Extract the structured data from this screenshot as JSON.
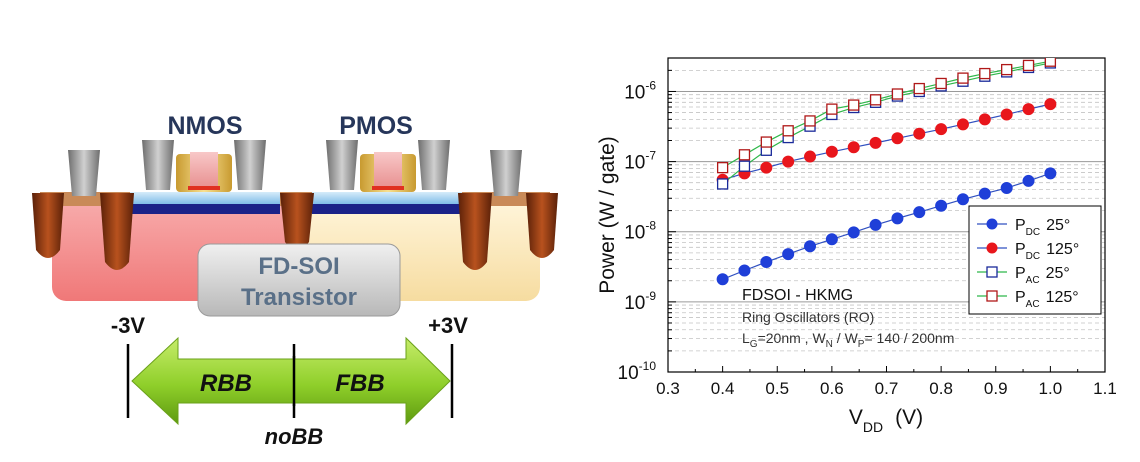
{
  "diagram": {
    "nmos_label": "NMOS",
    "pmos_label": "PMOS",
    "transistor_line1": "FD-SOI",
    "transistor_line2": "Transistor",
    "left_voltage": "-3V",
    "right_voltage": "+3V",
    "rbb_label": "RBB",
    "fbb_label": "FBB",
    "nobb_label": "noBB",
    "colors": {
      "arrow_green": "#8fcf2a",
      "pwell": "#f08c8c",
      "nwell": "#fbe6b0",
      "sti": "#8b3a17",
      "box_oxide": "#1a2288",
      "silicon": "#a8d4f0"
    }
  },
  "chart_data": {
    "type": "scatter",
    "xlabel_main": "V",
    "xlabel_sub": "DD",
    "xlabel_unit": "(V)",
    "ylabel": "Power (W / gate)",
    "xlim": [
      0.3,
      1.1
    ],
    "ylim": [
      1e-10,
      3e-06
    ],
    "yscale": "log",
    "xticks": [
      "0.3",
      "0.4",
      "0.5",
      "0.6",
      "0.7",
      "0.8",
      "0.9",
      "1.0",
      "1.1"
    ],
    "yticks": [
      {
        "base": "10",
        "exp": "-10"
      },
      {
        "base": "10",
        "exp": "-9"
      },
      {
        "base": "10",
        "exp": "-8"
      },
      {
        "base": "10",
        "exp": "-7"
      },
      {
        "base": "10",
        "exp": "-6"
      }
    ],
    "grid": true,
    "legend_position": "bottom-right",
    "annotation_title": "FDSOI - HKMG",
    "annotation_line2": "Ring Oscillators (RO)",
    "annotation_line3_parts": [
      "L",
      "G",
      "=20nm , W",
      "N",
      " / W",
      "P",
      "= 140 / 200nm"
    ],
    "series": [
      {
        "name_main": "P",
        "name_sub": "DC",
        "name_temp": "25°",
        "marker": "filled",
        "color": "#1f3fd8",
        "line": "#3050c0",
        "x": [
          0.4,
          0.44,
          0.48,
          0.52,
          0.56,
          0.6,
          0.64,
          0.68,
          0.72,
          0.76,
          0.8,
          0.84,
          0.88,
          0.92,
          0.96,
          1.0
        ],
        "y": [
          2.1e-09,
          2.8e-09,
          3.7e-09,
          4.8e-09,
          6.2e-09,
          7.8e-09,
          9.8e-09,
          1.25e-08,
          1.55e-08,
          1.9e-08,
          2.35e-08,
          2.9e-08,
          3.5e-08,
          4.2e-08,
          5.3e-08,
          6.8e-08
        ]
      },
      {
        "name_main": "P",
        "name_sub": "DC",
        "name_temp": "125°",
        "marker": "filled",
        "color": "#e8161c",
        "line": "#3050c0",
        "x": [
          0.4,
          0.44,
          0.48,
          0.52,
          0.56,
          0.6,
          0.64,
          0.68,
          0.72,
          0.76,
          0.8,
          0.84,
          0.88,
          0.92,
          0.96,
          1.0
        ],
        "y": [
          5.5e-08,
          6.8e-08,
          8.2e-08,
          1e-07,
          1.18e-07,
          1.38e-07,
          1.6e-07,
          1.85e-07,
          2.15e-07,
          2.5e-07,
          2.9e-07,
          3.4e-07,
          4e-07,
          4.7e-07,
          5.6e-07,
          6.6e-07
        ]
      },
      {
        "name_main": "P",
        "name_sub": "AC",
        "name_temp": "25°",
        "marker": "open",
        "color": "#1a2a9a",
        "line": "#2fb84a",
        "x": [
          0.4,
          0.44,
          0.48,
          0.52,
          0.56,
          0.6,
          0.64,
          0.68,
          0.72,
          0.76,
          0.8,
          0.84,
          0.88,
          0.92,
          0.96,
          1.0
        ],
        "y": [
          4.8e-08,
          8.6e-08,
          1.45e-07,
          2.2e-07,
          3.2e-07,
          4.7e-07,
          5.9e-07,
          7e-07,
          8.6e-07,
          1e-06,
          1.2e-06,
          1.4e-06,
          1.65e-06,
          1.9e-06,
          2.2e-06,
          2.55e-06
        ]
      },
      {
        "name_main": "P",
        "name_sub": "AC",
        "name_temp": "125°",
        "marker": "open",
        "color": "#b01818",
        "line": "#2fb84a",
        "x": [
          0.4,
          0.44,
          0.48,
          0.52,
          0.56,
          0.6,
          0.64,
          0.68,
          0.72,
          0.76,
          0.8,
          0.84,
          0.88,
          0.92,
          0.96,
          1.0
        ],
        "y": [
          8.2e-08,
          1.25e-07,
          1.9e-07,
          2.75e-07,
          3.8e-07,
          5.6e-07,
          6.4e-07,
          7.6e-07,
          9.2e-07,
          1.1e-06,
          1.3e-06,
          1.55e-06,
          1.8e-06,
          2.05e-06,
          2.35e-06,
          2.7e-06
        ]
      }
    ]
  }
}
